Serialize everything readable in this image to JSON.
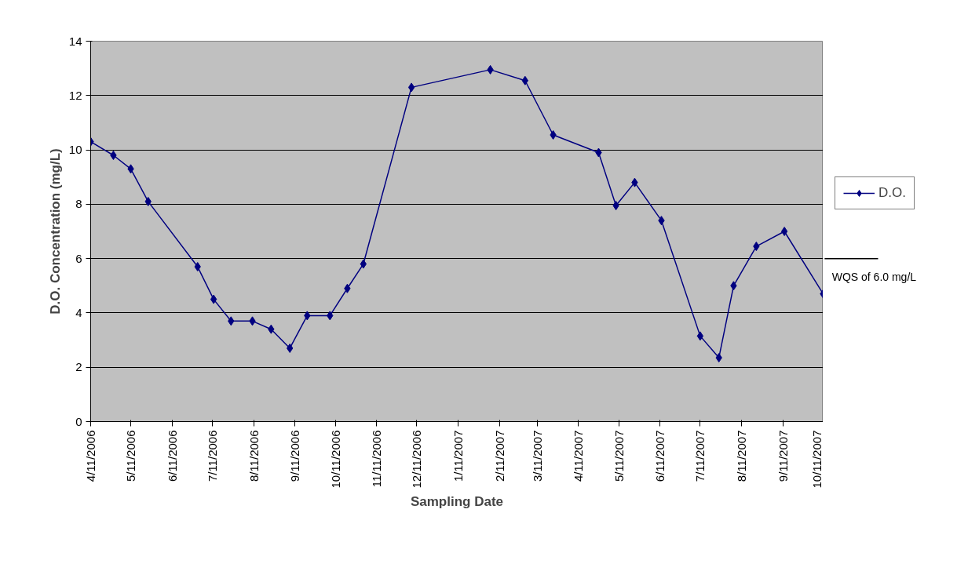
{
  "chart_data": {
    "type": "line",
    "xlabel": "Sampling Date",
    "ylabel": "D.O. Concentration (mg/L)",
    "x": [
      "2006-04-11",
      "2006-04-28",
      "2006-05-11",
      "2006-05-24",
      "2006-06-30",
      "2006-07-12",
      "2006-07-25",
      "2006-08-10",
      "2006-08-24",
      "2006-09-07",
      "2006-09-20",
      "2006-10-07",
      "2006-10-20",
      "2006-11-01",
      "2006-12-07",
      "2007-02-04",
      "2007-03-02",
      "2007-03-23",
      "2007-04-26",
      "2007-05-09",
      "2007-05-23",
      "2007-06-12",
      "2007-07-11",
      "2007-07-25",
      "2007-08-05",
      "2007-08-22",
      "2007-09-12",
      "2007-10-11"
    ],
    "series": [
      {
        "name": "D.O.",
        "color": "#000080",
        "values": [
          10.3,
          9.8,
          9.3,
          8.1,
          5.7,
          4.5,
          3.7,
          3.7,
          3.4,
          2.7,
          3.9,
          3.9,
          4.9,
          5.8,
          12.3,
          12.95,
          12.55,
          10.55,
          9.9,
          7.95,
          8.8,
          7.4,
          3.15,
          2.35,
          5.0,
          6.45,
          7.0,
          4.7
        ]
      }
    ],
    "xlim": [
      "2006-04-11",
      "2007-10-11"
    ],
    "xticks": [
      {
        "value": "2006-04-11",
        "label": "4/11/2006"
      },
      {
        "value": "2006-05-11",
        "label": "5/11/2006"
      },
      {
        "value": "2006-06-11",
        "label": "6/11/2006"
      },
      {
        "value": "2006-07-11",
        "label": "7/11/2006"
      },
      {
        "value": "2006-08-11",
        "label": "8/11/2006"
      },
      {
        "value": "2006-09-11",
        "label": "9/11/2006"
      },
      {
        "value": "2006-10-11",
        "label": "10/11/2006"
      },
      {
        "value": "2006-11-11",
        "label": "11/11/2006"
      },
      {
        "value": "2006-12-11",
        "label": "12/11/2006"
      },
      {
        "value": "2007-01-11",
        "label": "1/11/2007"
      },
      {
        "value": "2007-02-11",
        "label": "2/11/2007"
      },
      {
        "value": "2007-03-11",
        "label": "3/11/2007"
      },
      {
        "value": "2007-04-11",
        "label": "4/11/2007"
      },
      {
        "value": "2007-05-11",
        "label": "5/11/2007"
      },
      {
        "value": "2007-06-11",
        "label": "6/11/2007"
      },
      {
        "value": "2007-07-11",
        "label": "7/11/2007"
      },
      {
        "value": "2007-08-11",
        "label": "8/11/2007"
      },
      {
        "value": "2007-09-11",
        "label": "9/11/2007"
      },
      {
        "value": "2007-10-11",
        "label": "10/11/2007"
      }
    ],
    "ylim": [
      0,
      14
    ],
    "yticks": [
      0,
      2,
      4,
      6,
      8,
      10,
      12,
      14
    ],
    "grid": "y",
    "legend": "right",
    "marker": "diamond",
    "line_style": "solid",
    "ref_lines": [
      {
        "axis": "y",
        "value": 6,
        "label": "WQS of 6.0 mg/L",
        "color": "#000000"
      }
    ]
  }
}
